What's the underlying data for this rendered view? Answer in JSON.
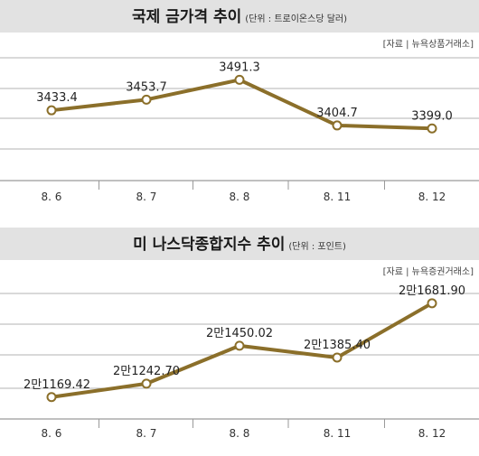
{
  "charts": [
    {
      "title": "국제 금가격 추이",
      "unit_note": "(단위 : 트로이온스당 달러)",
      "source": "[자료 | 뉴욕상품거래소]"
    },
    {
      "title": "미 나스닥종합지수 추이",
      "unit_note": "(단위 : 포인트)",
      "source": "[자료 | 뉴욕증권거래소]"
    }
  ],
  "colors": {
    "line": "#8b6f2a",
    "marker_fill": "#ffffff",
    "grid": "#9a9a9a",
    "title_bg": "#e2e2e2"
  },
  "chart_data": [
    {
      "type": "line",
      "title": "국제 금가격 추이",
      "unit": "(단위 : 트로이온스당 달러)",
      "categories": [
        "8. 6",
        "8. 7",
        "8. 8",
        "8. 11",
        "8. 12"
      ],
      "values": [
        3433.4,
        3453.7,
        3491.3,
        3404.7,
        3399.0
      ],
      "value_labels": [
        "3433.4",
        "3453.7",
        "3491.3",
        "3404.7",
        "3399.0"
      ],
      "ylim": [
        3300,
        3540
      ],
      "grid": true
    },
    {
      "type": "line",
      "title": "미 나스닥종합지수 추이",
      "unit": "(단위 : 포인트)",
      "categories": [
        "8. 6",
        "8. 7",
        "8. 8",
        "8. 11",
        "8. 12"
      ],
      "values": [
        21169.42,
        21242.7,
        21450.02,
        21385.4,
        21681.9
      ],
      "value_labels": [
        "2만1169.42",
        "2만1242.70",
        "2만1450.02",
        "2만1385.40",
        "2만1681.90"
      ],
      "ylim": [
        21050,
        21750
      ],
      "grid": true
    }
  ]
}
